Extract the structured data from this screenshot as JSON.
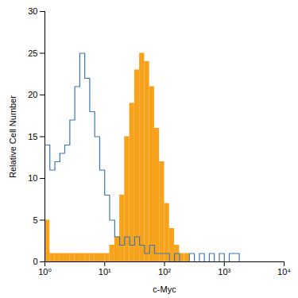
{
  "chart_data": {
    "type": "histogram",
    "xlabel": "c-Myc",
    "ylabel": "Relative Cell Number",
    "log": "x",
    "grid": false,
    "xlim": [
      1,
      10000
    ],
    "xticks": [
      {
        "value": 1,
        "label": "10⁰"
      },
      {
        "value": 10,
        "label": "10¹"
      },
      {
        "value": 100,
        "label": "10²"
      },
      {
        "value": 1000,
        "label": "10³"
      },
      {
        "value": 10000,
        "label": "10⁴"
      }
    ],
    "ylim": [
      0,
      30
    ],
    "yticks": [
      0,
      5,
      10,
      15,
      20,
      25,
      30
    ],
    "bins": [
      1,
      1.21,
      1.47,
      1.78,
      2.15,
      2.61,
      3.16,
      3.83,
      4.64,
      5.62,
      6.81,
      8.25,
      10,
      12.1,
      14.7,
      17.8,
      21.5,
      26.1,
      31.6,
      38.3,
      46.4,
      56.2,
      68.1,
      82.5,
      100,
      121,
      147,
      178,
      215,
      261,
      316,
      383,
      464,
      562,
      681,
      825,
      1000,
      1210,
      1470,
      1780,
      2150,
      2610,
      3160,
      3830,
      4640,
      5620,
      6810,
      8250,
      10000
    ],
    "series": [
      {
        "type": "bar",
        "color": "#f7a21b",
        "values": [
          5,
          1,
          1,
          1,
          1,
          1,
          1,
          1,
          1,
          1,
          1,
          1,
          1,
          2,
          3,
          8,
          15,
          19,
          23,
          25,
          24,
          21,
          16,
          12,
          7,
          4,
          2,
          1,
          1,
          0,
          0,
          0,
          0,
          0,
          0,
          0,
          0,
          0,
          0,
          0,
          0,
          0,
          0,
          0,
          0,
          0,
          0,
          0
        ]
      },
      {
        "type": "step",
        "color": "#3a77b0",
        "values": [
          14,
          11,
          12,
          13,
          14,
          17,
          21,
          25,
          22,
          18,
          15,
          11,
          8,
          5,
          3,
          2,
          3,
          2,
          3,
          2,
          1,
          2,
          1,
          1,
          1,
          0,
          1,
          0,
          0,
          1,
          0,
          1,
          0,
          1,
          0,
          1,
          0,
          1,
          1,
          0,
          0,
          0,
          0,
          0,
          0,
          0,
          0,
          0
        ]
      }
    ]
  }
}
